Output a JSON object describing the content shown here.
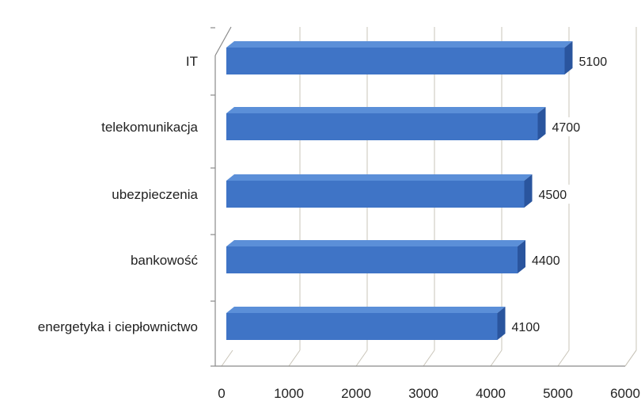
{
  "chart_data": {
    "type": "bar",
    "orientation": "horizontal",
    "style": "3d",
    "title": "",
    "xlabel": "",
    "ylabel": "",
    "categories": [
      "IT",
      "telekomunikacja",
      "ubezpieczenia",
      "bankowość",
      "energetyka i ciepłownictwo"
    ],
    "values": [
      5100,
      4700,
      4500,
      4400,
      4100
    ],
    "data_labels": [
      "5100",
      "4700",
      "4500",
      "4400",
      "4100"
    ],
    "xlim": [
      0,
      6000
    ],
    "xticks": [
      0,
      1000,
      2000,
      3000,
      4000,
      5000,
      6000
    ],
    "xtick_labels": [
      "0",
      "1000",
      "2000",
      "3000",
      "4000",
      "5000",
      "6000"
    ],
    "grid": true,
    "legend": "none",
    "colors": {
      "bar_front": "#3f74c6",
      "bar_top": "#5b8fd8",
      "bar_side": "#2a559e",
      "grid": "#c8c4b8",
      "background": "#ffffff"
    }
  }
}
